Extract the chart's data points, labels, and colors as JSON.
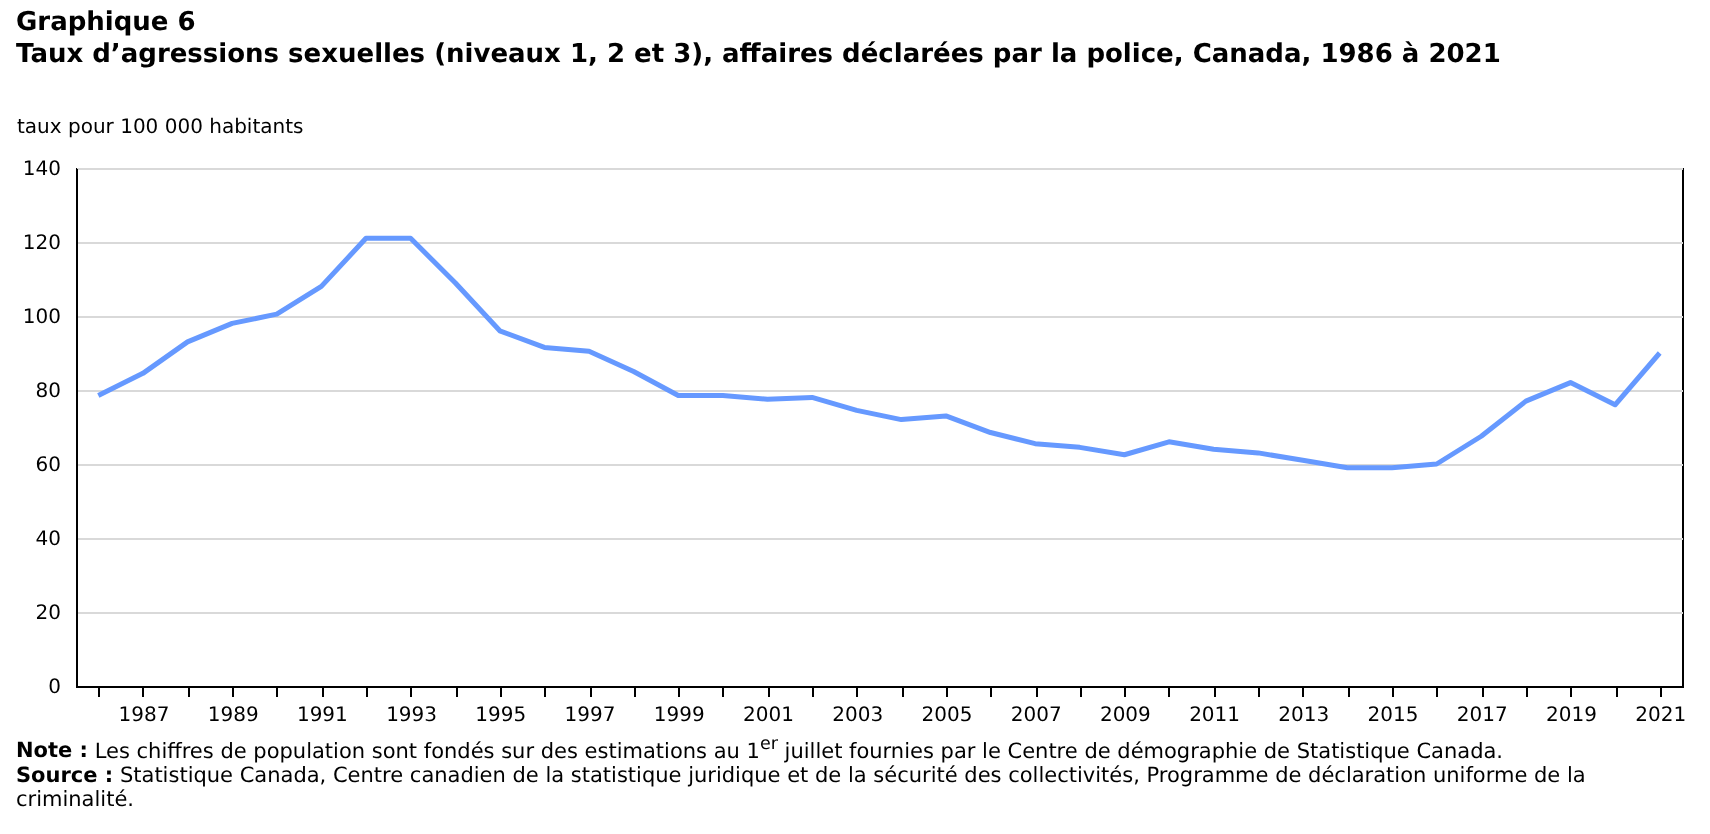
{
  "chart_data": {
    "type": "line",
    "title": "Graphique 6",
    "subtitle": "Taux d’agressions sexuelles (niveaux 1, 2 et 3), affaires déclarées par la police, Canada, 1986 à 2021",
    "ylabel": "taux pour 100 000 habitants",
    "categories": [
      null,
      "1987",
      null,
      "1989",
      null,
      "1991",
      null,
      "1993",
      null,
      "1995",
      null,
      "1997",
      null,
      "1999",
      null,
      "2001",
      null,
      "2003",
      null,
      "2005",
      null,
      "2007",
      null,
      "2009",
      null,
      "2011",
      null,
      "2013",
      null,
      "2015",
      null,
      "2017",
      null,
      "2019",
      null,
      "2021"
    ],
    "series": [
      {
        "color": "#6699ff",
        "values": [
          78.5,
          84.5,
          93,
          98,
          100.5,
          108,
          121,
          121,
          109,
          96,
          91.5,
          90.5,
          85,
          78.5,
          78.5,
          77.5,
          78,
          74.5,
          72,
          73,
          68.5,
          65.5,
          64.5,
          62.5,
          66,
          64,
          63,
          61,
          59,
          59,
          60,
          67.5,
          77,
          82,
          76,
          90
        ]
      }
    ],
    "ylim": [
      0,
      140
    ],
    "yticks": [
      0,
      20,
      40,
      60,
      80,
      100,
      120,
      140
    ],
    "grid": "y",
    "annotations": [
      "Note : Les chiffres de population sont fondés sur des estimations au 1$^{er}$ juillet fournies par le Centre de démographie de Statistique Canada.",
      "Source : Statistique Canada, Centre canadien de la statistique juridique et de la sécurité des collectivités, Programme de déclaration uniforme de la criminalité."
    ]
  }
}
